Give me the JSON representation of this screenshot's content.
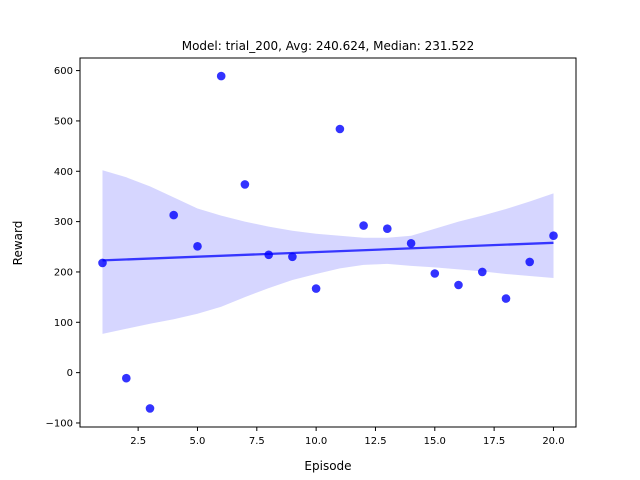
{
  "chart_data": {
    "type": "scatter",
    "title": "Model: trial_200, Avg: 240.624, Median: 231.522",
    "xlabel": "Episode",
    "ylabel": "Reward",
    "xlim": [
      0.05,
      20.95
    ],
    "ylim": [
      -108,
      625
    ],
    "xticks": [
      2.5,
      5.0,
      7.5,
      10.0,
      12.5,
      15.0,
      17.5,
      20.0
    ],
    "xtick_labels": [
      "2.5",
      "5.0",
      "7.5",
      "10.0",
      "12.5",
      "15.0",
      "17.5",
      "20.0"
    ],
    "yticks": [
      -100,
      0,
      100,
      200,
      300,
      400,
      500,
      600
    ],
    "ytick_labels": [
      "−100",
      "0",
      "100",
      "200",
      "300",
      "400",
      "500",
      "600"
    ],
    "grid": false,
    "points": {
      "x": [
        1,
        2,
        3,
        4,
        5,
        6,
        7,
        8,
        9,
        10,
        11,
        12,
        13,
        14,
        15,
        16,
        17,
        18,
        19,
        20
      ],
      "y": [
        218,
        -11,
        -71,
        313,
        251,
        589,
        374,
        234,
        230,
        167,
        484,
        292,
        286,
        257,
        197,
        174,
        200,
        147,
        220,
        272
      ],
      "color": "#0000ff"
    },
    "regression": {
      "x": [
        1,
        20
      ],
      "y": [
        223,
        258
      ],
      "color": "#0000ff"
    },
    "confidence_band": {
      "x": [
        1,
        2,
        3,
        4,
        5,
        6,
        7,
        8,
        9,
        10,
        11,
        12,
        13,
        14,
        15,
        16,
        17,
        18,
        19,
        20
      ],
      "upper": [
        402,
        388,
        370,
        348,
        326,
        312,
        300,
        290,
        282,
        276,
        272,
        268,
        268,
        272,
        286,
        300,
        312,
        325,
        340,
        356
      ],
      "lower": [
        77,
        87,
        97,
        106,
        117,
        131,
        150,
        168,
        184,
        196,
        207,
        214,
        216,
        212,
        209,
        205,
        201,
        196,
        192,
        188
      ],
      "color": "#ccccff"
    }
  }
}
